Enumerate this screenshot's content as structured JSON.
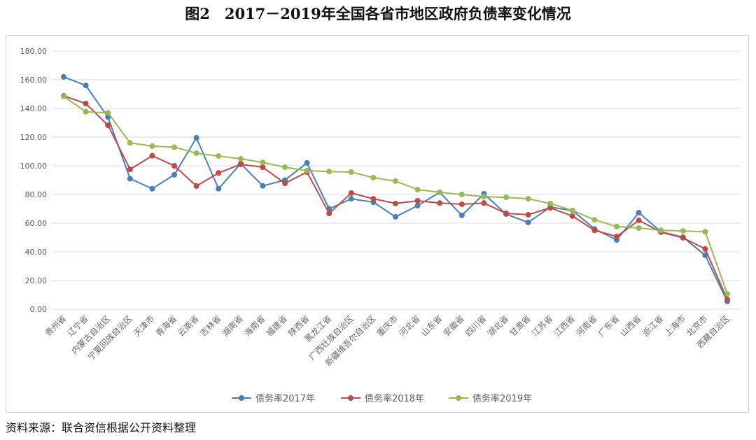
{
  "title": "图2　2017－2019年全国各省市地区政府负债率变化情况",
  "source": "资料来源：联合资信根据公开资料整理",
  "chart_data": {
    "type": "line",
    "title": "图2　2017－2019年全国各省市地区政府负债率变化情况",
    "xlabel": "",
    "ylabel": "",
    "ylim": [
      0,
      180
    ],
    "yticks": [
      "0.00",
      "20.00",
      "40.00",
      "60.00",
      "80.00",
      "100.00",
      "120.00",
      "140.00",
      "160.00",
      "180.00"
    ],
    "grid": true,
    "legend": "bottom",
    "categories": [
      "贵州省",
      "辽宁省",
      "内蒙古自治区",
      "宁夏回族自治区",
      "天津市",
      "青海省",
      "云南省",
      "吉林省",
      "湖南省",
      "海南省",
      "福建省",
      "陕西省",
      "黑龙江省",
      "广西壮族自治区",
      "新疆维吾尔自治区",
      "重庆市",
      "河北省",
      "山东省",
      "安徽省",
      "四川省",
      "湖北省",
      "甘肃省",
      "江苏省",
      "江西省",
      "河南省",
      "广东省",
      "山西省",
      "浙江省",
      "上海市",
      "北京市",
      "西藏自治区"
    ],
    "series": [
      {
        "name": "债务率2017年",
        "color": "#4a7ebb",
        "values": [
          162.0,
          156.0,
          134.0,
          91.0,
          84.0,
          93.7,
          119.5,
          84.0,
          101.5,
          86.0,
          90.0,
          102.0,
          70.0,
          77.0,
          74.6,
          64.4,
          72.2,
          81.5,
          65.4,
          80.5,
          66.3,
          60.5,
          71.2,
          68.8,
          56.0,
          48.3,
          67.3,
          54.0,
          50.2,
          37.6,
          5.4
        ]
      },
      {
        "name": "债务率2018年",
        "color": "#be4b48",
        "values": [
          148.8,
          143.4,
          128.3,
          97.5,
          107.0,
          100.0,
          85.9,
          95.0,
          101.0,
          99.0,
          87.8,
          95.6,
          66.8,
          81.0,
          77.0,
          73.7,
          75.6,
          74.0,
          73.2,
          74.0,
          66.8,
          65.9,
          70.7,
          64.9,
          55.0,
          50.7,
          62.0,
          53.7,
          49.8,
          42.0,
          6.8
        ]
      },
      {
        "name": "债务率2019年",
        "color": "#98b954",
        "values": [
          148.5,
          137.6,
          137.0,
          116.0,
          113.7,
          113.0,
          108.8,
          106.8,
          104.9,
          102.4,
          99.0,
          96.6,
          96.0,
          95.6,
          91.7,
          89.3,
          83.4,
          81.5,
          80.0,
          78.5,
          78.0,
          77.0,
          73.7,
          68.8,
          62.4,
          57.6,
          56.6,
          55.0,
          54.6,
          54.0,
          10.7
        ]
      }
    ]
  }
}
